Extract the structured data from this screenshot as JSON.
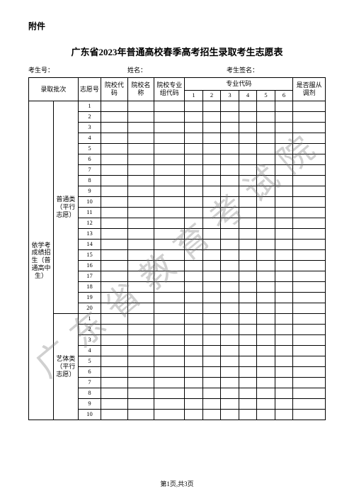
{
  "attachment_label": "附件",
  "title": "广东省2023年普通高校春季高考招生录取考生志愿表",
  "info": {
    "exam_no_label": "考生号：",
    "name_label": "姓名：",
    "sign_label": "考生签名："
  },
  "headers": {
    "batch": "录取批次",
    "volunteer_no": "志愿号",
    "school_code": "院校代码",
    "school_name": "院校名称",
    "group_code": "院校专业组代码",
    "major_code": "专业代码",
    "adjust": "是否服从调剂",
    "m1": "1",
    "m2": "2",
    "m3": "3",
    "m4": "4",
    "m5": "5",
    "m6": "6"
  },
  "batch_outer": "依学考成绩招生（普通高中生）",
  "batch_general": "普通类（平行志愿）",
  "batch_art": "艺体类（平行志愿）",
  "general_rows": [
    "1",
    "2",
    "3",
    "4",
    "5",
    "6",
    "7",
    "8",
    "9",
    "10",
    "11",
    "12",
    "13",
    "14",
    "15",
    "16",
    "17",
    "18",
    "19",
    "20"
  ],
  "art_rows": [
    "1",
    "2",
    "3",
    "4",
    "5",
    "6",
    "7",
    "8",
    "9",
    "10"
  ],
  "watermark": "广东省教育考试院",
  "footer": "第1页,共3页",
  "colors": {
    "text": "#000000",
    "border": "#000000",
    "bg": "#ffffff",
    "watermark": "rgba(120,120,120,0.35)"
  }
}
